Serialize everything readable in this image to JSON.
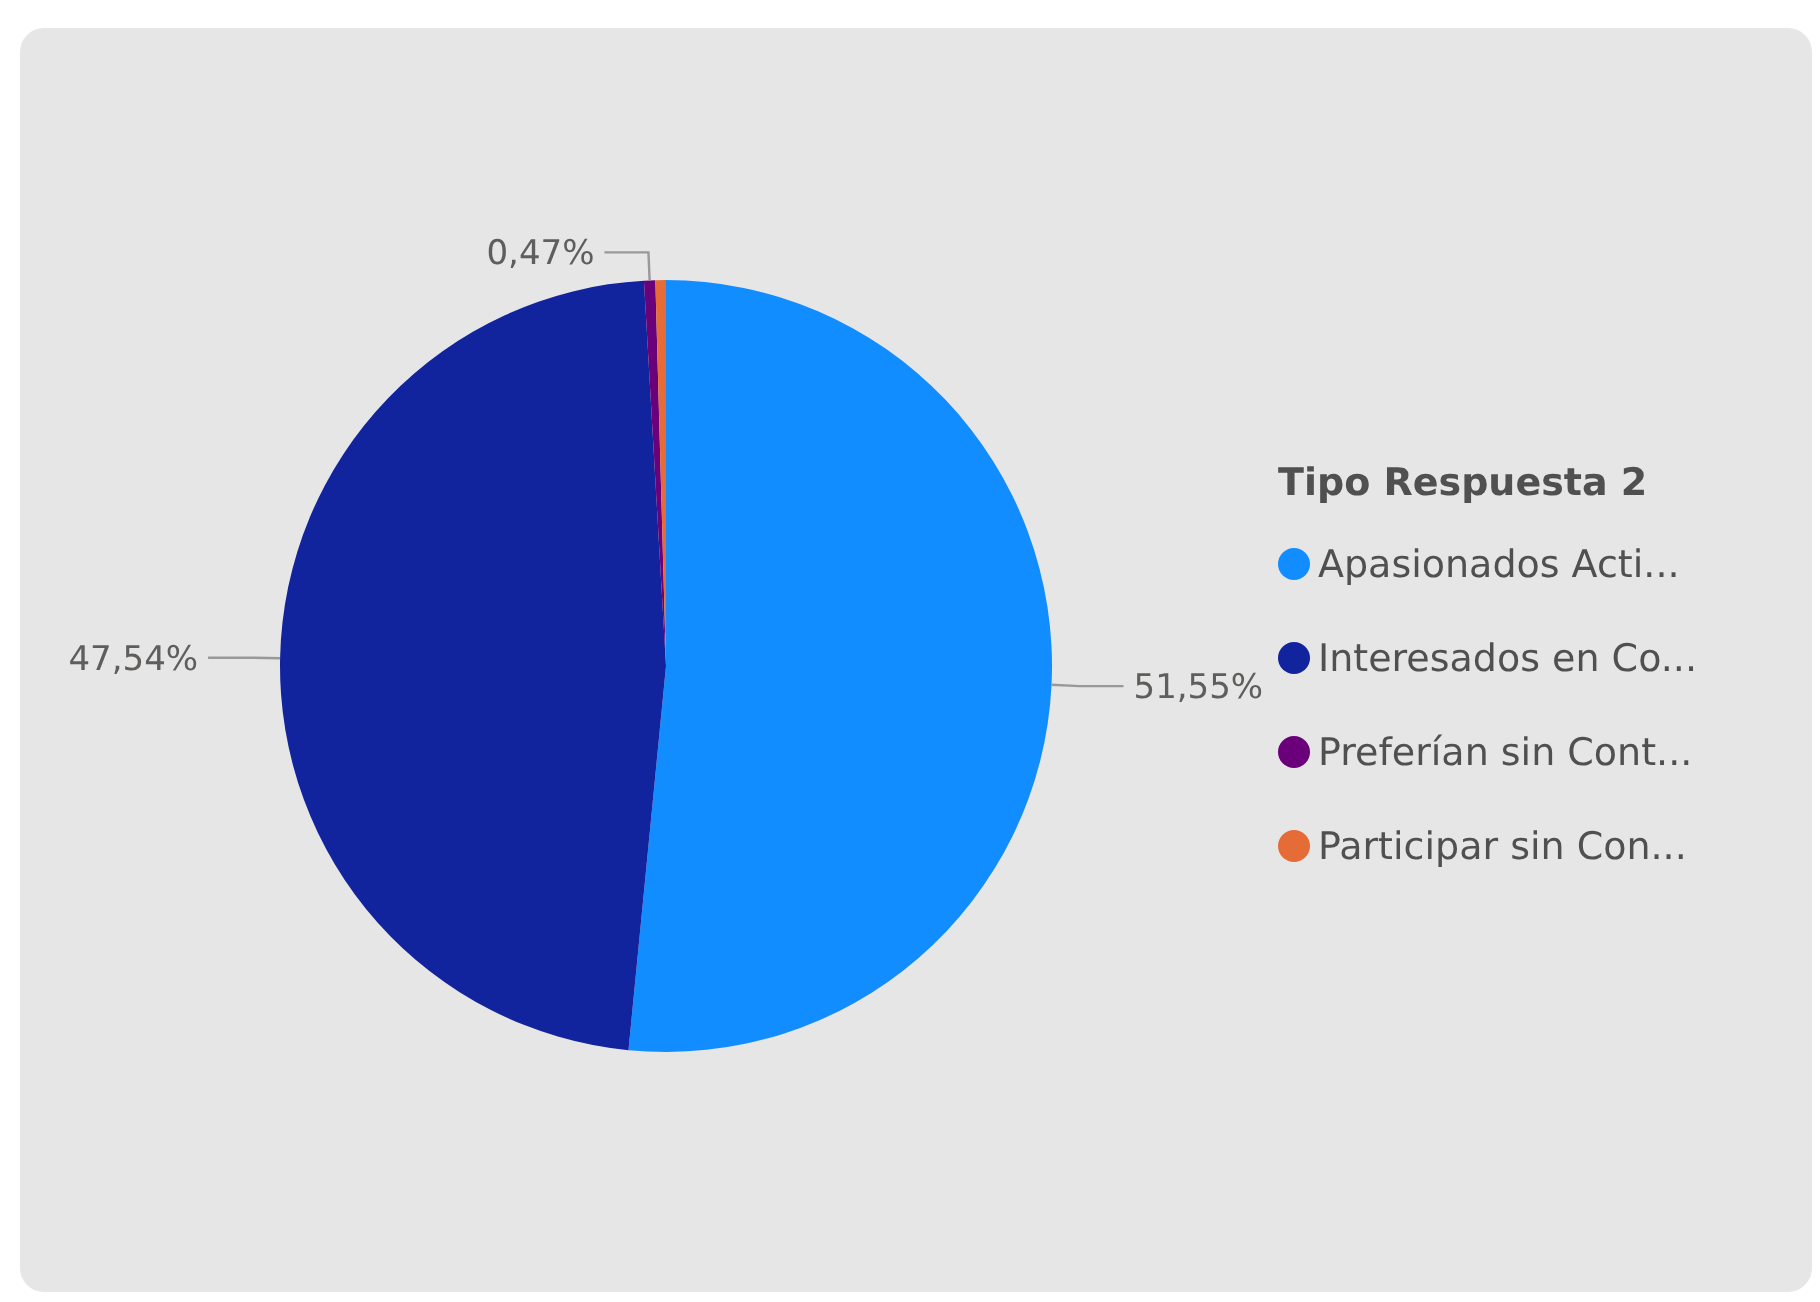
{
  "chart_data": {
    "type": "pie",
    "legend_title": "Tipo Respuesta 2",
    "legend": "right",
    "categories": [
      "Apasionados Acti...",
      "Interesados en Co...",
      "Preferían sin Cont...",
      "Participar sin Con..."
    ],
    "values": [
      51.55,
      47.54,
      0.47,
      0.44
    ],
    "colors": [
      "#118dff",
      "#12239e",
      "#6b007b",
      "#e66c37"
    ],
    "value_labels": [
      "51,55%",
      "47,54%",
      "0,47%",
      null
    ]
  }
}
